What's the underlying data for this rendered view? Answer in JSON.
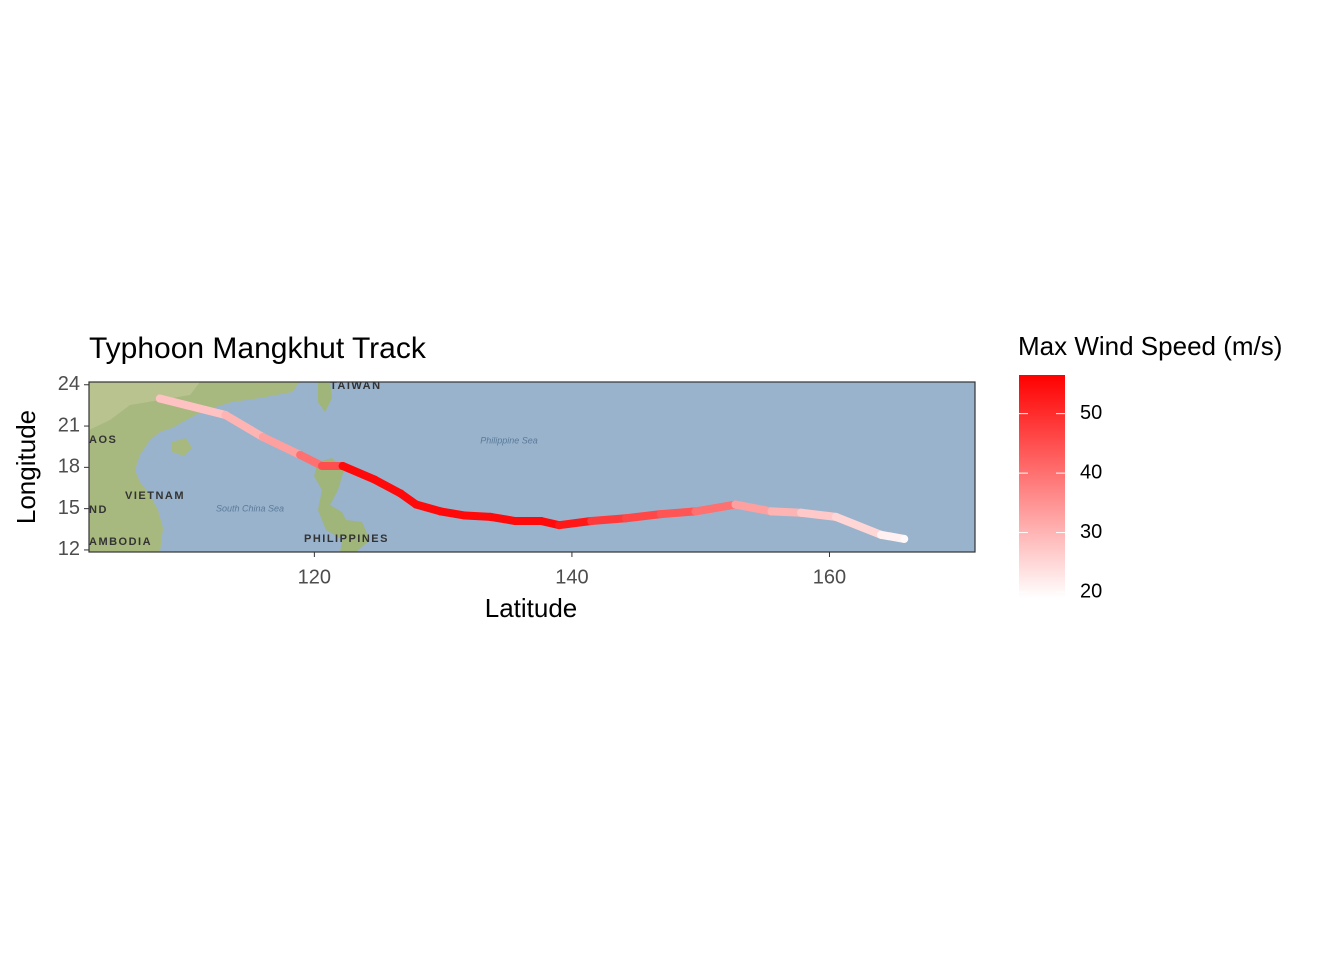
{
  "chart_data": {
    "type": "track",
    "title": "Typhoon Mangkhut Track",
    "xlabel": "Latitude",
    "ylabel": "Longitude",
    "x": [
      108.0,
      113.1,
      116.0,
      118.9,
      120.6,
      122.2,
      124.7,
      126.7,
      127.9,
      129.8,
      131.7,
      133.7,
      135.6,
      137.6,
      139.0,
      141.5,
      144.2,
      146.9,
      149.6,
      152.7,
      155.5,
      157.8,
      160.5,
      164.0,
      165.8
    ],
    "y": [
      23.0,
      21.8,
      20.2,
      18.9,
      18.1,
      18.1,
      17.1,
      16.1,
      15.3,
      14.8,
      14.5,
      14.4,
      14.1,
      14.1,
      13.8,
      14.1,
      14.3,
      14.6,
      14.8,
      15.3,
      14.8,
      14.7,
      14.4,
      13.1,
      12.8
    ],
    "wind": [
      28,
      30,
      33,
      40,
      45,
      55,
      55,
      55,
      55,
      55,
      55,
      55,
      55,
      55,
      53,
      48,
      46,
      44,
      40,
      33,
      30,
      27,
      25,
      21,
      20
    ],
    "xlim": [
      102.5,
      171.3
    ],
    "ylim": [
      11.85,
      24.2
    ],
    "xticks": [
      120,
      140,
      160
    ],
    "yticks": [
      12,
      15,
      18,
      21,
      24
    ],
    "colorbar": {
      "title": "Max Wind Speed (m/s)",
      "lim": [
        19,
        56.5
      ],
      "ticks": [
        20,
        30,
        40,
        50
      ],
      "colors": [
        "#ffffff",
        "#ff0000"
      ]
    },
    "map_labels": [
      "TAIWAN",
      "AOS",
      "VIETNAM",
      "ND",
      "AMBODIA",
      "PHILIPPINES",
      "South China Sea",
      "Philippine Sea"
    ]
  }
}
